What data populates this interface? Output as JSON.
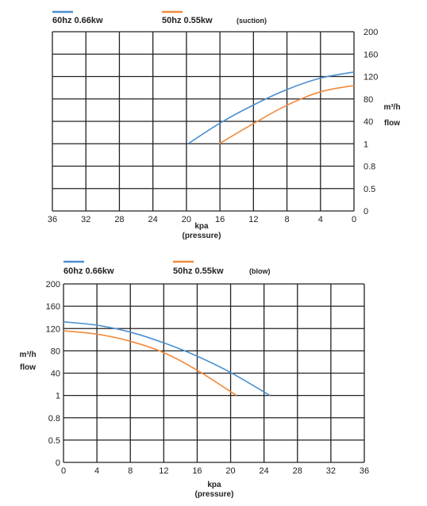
{
  "chart_data": [
    {
      "type": "line",
      "note": "(suction)",
      "xlabel": "kpa",
      "xlabel_sub": "(pressure)",
      "ylabel": "m³/h",
      "ylabel_sub": "flow",
      "x_ticks": [
        "36",
        "32",
        "28",
        "24",
        "20",
        "16",
        "12",
        "8",
        "4",
        "0"
      ],
      "y_ticks": [
        "0",
        "0.5",
        "0.8",
        "1",
        "40",
        "80",
        "120",
        "160",
        "200"
      ],
      "x_reversed": true,
      "grid": true,
      "series": [
        {
          "name": "60hz 0.66kw",
          "color": "#4a8fd0",
          "x": [
            19.8,
            16,
            12,
            8,
            4,
            0
          ],
          "y_level": [
            3,
            3.92,
            4.73,
            5.42,
            5.93,
            6.2
          ]
        },
        {
          "name": "50hz  0.55kw",
          "color": "#f08a3c",
          "x": [
            16.1,
            12,
            8,
            4,
            0
          ],
          "y_level": [
            3,
            3.9,
            4.72,
            5.32,
            5.6
          ]
        }
      ]
    },
    {
      "type": "line",
      "note": "(blow)",
      "xlabel": "kpa",
      "xlabel_sub": "(pressure)",
      "ylabel": "m³/h",
      "ylabel_sub": "flow",
      "x_ticks": [
        "0",
        "4",
        "8",
        "12",
        "16",
        "20",
        "24",
        "28",
        "32",
        "36"
      ],
      "y_ticks": [
        "0",
        "0.5",
        "0.8",
        "1",
        "40",
        "80",
        "120",
        "160",
        "200"
      ],
      "x_reversed": false,
      "grid": true,
      "series": [
        {
          "name": "60hz 0.66kw",
          "color": "#4a8fd0",
          "x": [
            0,
            4,
            8,
            12,
            16,
            20,
            24.7
          ],
          "y_level": [
            6.3,
            6.15,
            5.84,
            5.36,
            4.76,
            4.03,
            3
          ]
        },
        {
          "name": "50hz  0.55kw",
          "color": "#f08a3c",
          "x": [
            0,
            4,
            8,
            12,
            16,
            20.7
          ],
          "y_level": [
            5.9,
            5.75,
            5.43,
            4.92,
            4.13,
            3
          ]
        }
      ]
    }
  ]
}
